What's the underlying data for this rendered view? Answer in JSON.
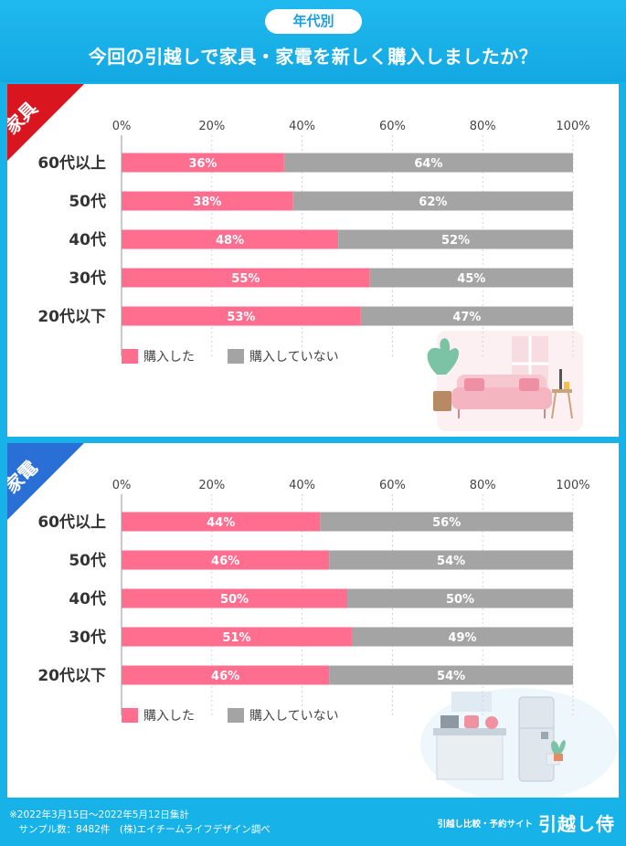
{
  "header": {
    "badge": "年代別",
    "title": "今回の引越しで家具・家電を新しく購入しましたか？"
  },
  "colors": {
    "bought": "#ff6d8f",
    "not_bought": "#a4a4a4",
    "furniture_corner": "#d9161f",
    "appliance_corner": "#2a6fd6"
  },
  "chart_data": [
    {
      "type": "bar",
      "orientation": "horizontal",
      "stacked": true,
      "title": "家具",
      "categories": [
        "60代以上",
        "50代",
        "40代",
        "30代",
        "20代以下"
      ],
      "series": [
        {
          "name": "購入した",
          "values": [
            36,
            38,
            48,
            55,
            53
          ],
          "labels": [
            "36%",
            "38%",
            "48%",
            "55%",
            "53%"
          ]
        },
        {
          "name": "購入していない",
          "values": [
            64,
            62,
            52,
            45,
            47
          ],
          "labels": [
            "64%",
            "62%",
            "52%",
            "45%",
            "47%"
          ]
        }
      ],
      "xlim": [
        0,
        100
      ],
      "ticks": [
        "0%",
        "20%",
        "40%",
        "60%",
        "80%",
        "100%"
      ],
      "grid": true,
      "legend": "bottom-left"
    },
    {
      "type": "bar",
      "orientation": "horizontal",
      "stacked": true,
      "title": "家電",
      "categories": [
        "60代以上",
        "50代",
        "40代",
        "30代",
        "20代以下"
      ],
      "series": [
        {
          "name": "購入した",
          "values": [
            44,
            46,
            50,
            51,
            46
          ],
          "labels": [
            "44%",
            "46%",
            "50%",
            "51%",
            "46%"
          ]
        },
        {
          "name": "購入していない",
          "values": [
            56,
            54,
            50,
            49,
            54
          ],
          "labels": [
            "56%",
            "54%",
            "50%",
            "49%",
            "54%"
          ]
        }
      ],
      "xlim": [
        0,
        100
      ],
      "ticks": [
        "0%",
        "20%",
        "40%",
        "60%",
        "80%",
        "100%"
      ],
      "grid": true,
      "legend": "bottom-left"
    }
  ],
  "footer": {
    "note_line1": "※2022年3月15日～2022年5月12日集計",
    "note_line2": "　サンプル数：8482件　(株)エイチームライフデザイン調べ",
    "brand_sub": "引越し比較・予約サイト",
    "brand_main": "引越し侍"
  }
}
